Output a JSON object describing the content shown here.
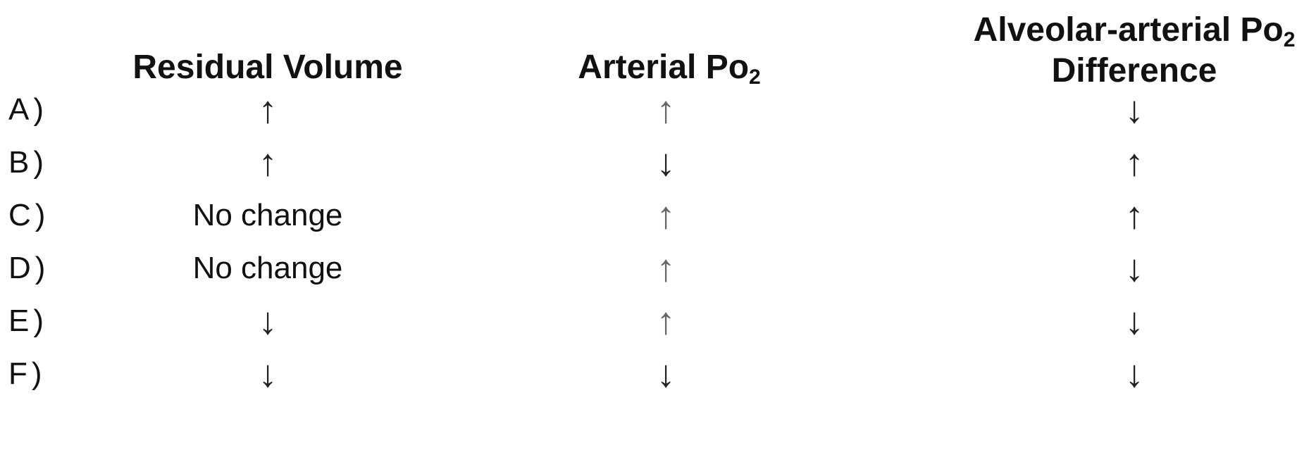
{
  "headers": {
    "residual_volume": "Residual Volume",
    "arterial_main": "Arterial Po",
    "arterial_sub": "2",
    "aa_line1_main": "Alveolar-arterial Po",
    "aa_line1_sub": "2",
    "aa_line2": "Difference"
  },
  "rows": [
    {
      "option": "A)",
      "residual_volume": "↑",
      "arterial_po2": "↑",
      "aa_difference": "↓"
    },
    {
      "option": "B)",
      "residual_volume": "↑",
      "arterial_po2": "↓",
      "aa_difference": "↑"
    },
    {
      "option": "C)",
      "residual_volume": "No change",
      "arterial_po2": "↑",
      "aa_difference": "↑"
    },
    {
      "option": "D)",
      "residual_volume": "No change",
      "arterial_po2": "↑",
      "aa_difference": "↓"
    },
    {
      "option": "E)",
      "residual_volume": "↓",
      "arterial_po2": "↑",
      "aa_difference": "↓"
    },
    {
      "option": "F)",
      "residual_volume": "↓",
      "arterial_po2": "↓",
      "aa_difference": "↓"
    }
  ]
}
